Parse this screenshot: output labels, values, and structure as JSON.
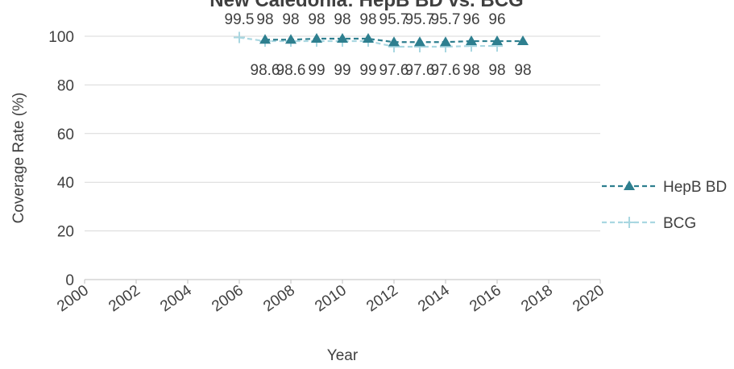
{
  "chart_data": {
    "type": "line",
    "title": "New Caledonia: HepB BD vs. BCG",
    "xlabel": "Year",
    "ylabel": "Coverage Rate (%)",
    "xlim": [
      2000,
      2020
    ],
    "ylim": [
      0,
      100
    ],
    "x_ticks": [
      2000,
      2002,
      2004,
      2006,
      2008,
      2010,
      2012,
      2014,
      2016,
      2018,
      2020
    ],
    "y_ticks": [
      0,
      20,
      40,
      60,
      80,
      100
    ],
    "grid": "horizontal",
    "legend_position": "right",
    "series": [
      {
        "name": "HepB BD",
        "color": "#2e7f8f",
        "marker": "triangle",
        "line_style": "dashed",
        "x": [
          2007,
          2008,
          2009,
          2010,
          2011,
          2012,
          2013,
          2014,
          2015,
          2016,
          2017
        ],
        "values": [
          98.6,
          98.6,
          99,
          99,
          99,
          97.6,
          97.6,
          97.6,
          98,
          98,
          98
        ],
        "labels": [
          "98.6",
          "98.6",
          "99",
          "99",
          "99",
          "97.6",
          "97.6",
          "97.6",
          "98",
          "98",
          "98"
        ]
      },
      {
        "name": "BCG",
        "color": "#a9d7e1",
        "marker": "plus",
        "line_style": "dashed",
        "x": [
          2006,
          2007,
          2008,
          2009,
          2010,
          2011,
          2012,
          2013,
          2014,
          2015,
          2016
        ],
        "values": [
          99.5,
          98,
          98,
          98,
          98,
          98,
          95.7,
          95.7,
          95.7,
          96,
          96
        ],
        "labels": [
          "99.5",
          "98",
          "98",
          "98",
          "98",
          "98",
          "95.7",
          "95.7",
          "95.7",
          "96",
          "96"
        ]
      }
    ]
  }
}
